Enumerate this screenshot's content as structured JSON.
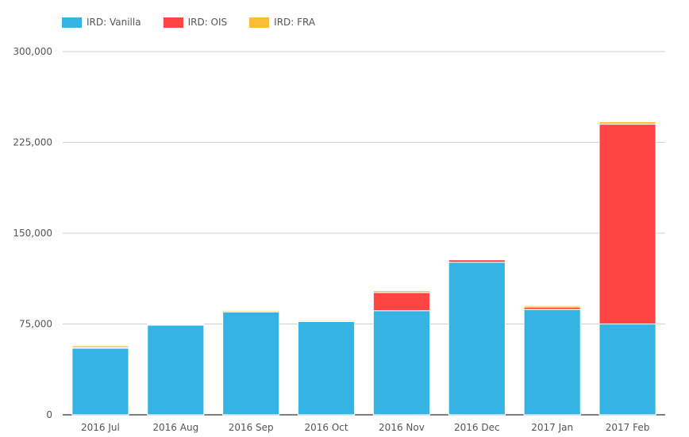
{
  "chart_data": {
    "type": "bar",
    "stacked": true,
    "categories": [
      "2016 Jul",
      "2016 Aug",
      "2016 Sep",
      "2016 Oct",
      "2016 Nov",
      "2016 Dec",
      "2017 Jan",
      "2017 Feb"
    ],
    "series": [
      {
        "name": "IRD: Vanilla",
        "color": "#35b4e4",
        "values": [
          55000,
          74000,
          85000,
          77000,
          86000,
          126000,
          87000,
          75000
        ]
      },
      {
        "name": "IRD: OIS",
        "color": "#ff4444",
        "values": [
          500,
          300,
          200,
          200,
          15000,
          2000,
          2000,
          165000
        ]
      },
      {
        "name": "IRD: FRA",
        "color": "#fbbd38",
        "values": [
          1500,
          600,
          1000,
          800,
          1500,
          500,
          1200,
          2000
        ]
      }
    ],
    "ylim": [
      0,
      300000
    ],
    "yticks": [
      0,
      75000,
      150000,
      225000,
      300000
    ],
    "ytick_labels": [
      "0",
      "75,000",
      "150,000",
      "225,000",
      "300,000"
    ],
    "legend_position": "top-left",
    "grid": true
  }
}
